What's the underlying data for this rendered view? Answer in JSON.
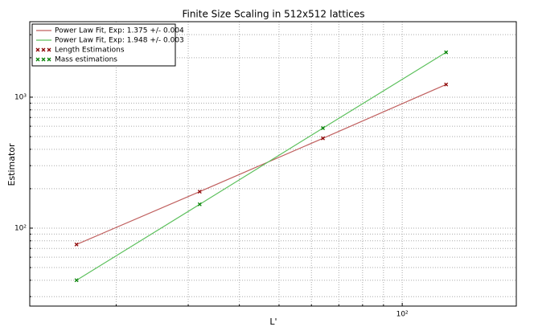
{
  "chart_data": {
    "type": "line",
    "title": "Finite Size Scaling in 512x512 lattices",
    "xlabel": "L'",
    "ylabel": "Estimator",
    "log_x": true,
    "log_y": true,
    "grid": true,
    "legend": "upper left",
    "x": [
      16,
      32,
      64,
      128
    ],
    "series": [
      {
        "name": "Power Law Fit, Exp: 1.375 +/- 0.004",
        "kind": "line",
        "color": "#c0605f",
        "values": [
          75,
          190,
          485,
          1250
        ]
      },
      {
        "name": "Power Law Fit, Exp: 1.948 +/- 0.003",
        "kind": "line",
        "color": "#5cc05c",
        "values": [
          40,
          152,
          580,
          2200
        ]
      },
      {
        "name": "Length Estimations",
        "kind": "marker",
        "color": "#8b0000",
        "values": [
          75,
          190,
          485,
          1250
        ]
      },
      {
        "name": "Mass estimations",
        "kind": "marker",
        "color": "#008000",
        "values": [
          40,
          152,
          580,
          2200
        ]
      }
    ],
    "xlim": [
      12.3,
      190
    ],
    "ylim": [
      25.4,
      3770
    ],
    "xticks": [
      {
        "value": 100,
        "label": "10²"
      }
    ],
    "yticks": [
      {
        "value": 100,
        "label": "10²"
      },
      {
        "value": 1000,
        "label": "10³"
      }
    ],
    "x_minor_ticks": [
      20,
      30,
      40,
      50,
      60,
      70,
      80,
      90
    ],
    "y_minor_ticks": [
      30,
      40,
      50,
      60,
      70,
      80,
      90,
      200,
      300,
      400,
      500,
      600,
      700,
      800,
      900,
      2000,
      3000
    ]
  }
}
